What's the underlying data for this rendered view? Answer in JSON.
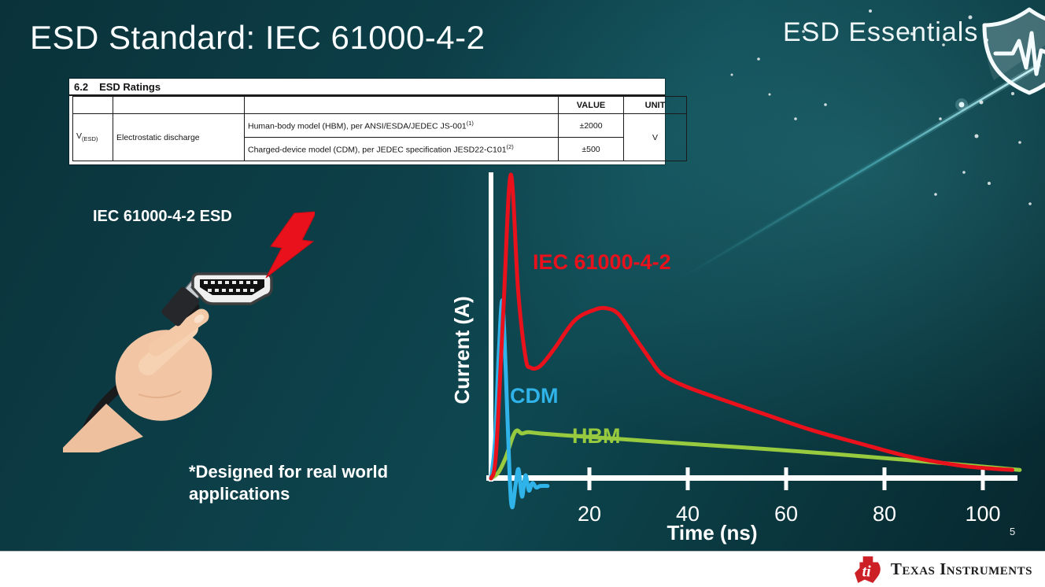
{
  "slide": {
    "title": "ESD Standard: IEC 61000-4-2",
    "program_name": "ESD Essentials",
    "page_number": "5",
    "illustration_label": "IEC 61000-4-2 ESD",
    "footnote": "*Designed for real world applications"
  },
  "ratings_table": {
    "section_number": "6.2",
    "section_title": "ESD Ratings",
    "headers": {
      "value": "VALUE",
      "unit": "UNIT"
    },
    "symbol": "V",
    "symbol_subscript": "(ESD)",
    "parameter": "Electrostatic discharge",
    "rows": [
      {
        "description": "Human-body model (HBM), per ANSI/ESDA/JEDEC JS-001",
        "superscript": "(1)",
        "value": "±2000"
      },
      {
        "description": "Charged-device model (CDM), per JEDEC specification JESD22-C101",
        "superscript": "(2)",
        "value": "±500"
      }
    ],
    "unit": "V"
  },
  "footer": {
    "brand": "Texas Instruments",
    "logo_monogram": "ti"
  },
  "chart_data": {
    "type": "line",
    "title": "",
    "xlabel": "Time (ns)",
    "ylabel": "Current (A)",
    "x_ticks": [
      20,
      40,
      60,
      80,
      100
    ],
    "x_range": [
      0,
      110
    ],
    "grid": false,
    "legend": "inline-colored-labels",
    "colors": {
      "iec": "#e8111c",
      "cdm": "#2fb3e8",
      "hbm": "#97ca3e",
      "axis": "#ffffff"
    },
    "series": [
      {
        "name": "IEC 61000-4-2",
        "color": "#e8111c",
        "points": [
          [
            0,
            0
          ],
          [
            1,
            0.08
          ],
          [
            2.5,
            0.55
          ],
          [
            4,
            1.0
          ],
          [
            5.5,
            0.62
          ],
          [
            7,
            0.4
          ],
          [
            8,
            0.365
          ],
          [
            10,
            0.37
          ],
          [
            13,
            0.43
          ],
          [
            17,
            0.52
          ],
          [
            21,
            0.555
          ],
          [
            23.5,
            0.56
          ],
          [
            26,
            0.54
          ],
          [
            29,
            0.47
          ],
          [
            32,
            0.4
          ],
          [
            34,
            0.355
          ],
          [
            36,
            0.33
          ],
          [
            40,
            0.3
          ],
          [
            46,
            0.265
          ],
          [
            55,
            0.215
          ],
          [
            65,
            0.16
          ],
          [
            75,
            0.115
          ],
          [
            85,
            0.072
          ],
          [
            95,
            0.043
          ],
          [
            102,
            0.032
          ],
          [
            106,
            0.028
          ]
        ]
      },
      {
        "name": "CDM",
        "color": "#2fb3e8",
        "points": [
          [
            0,
            0
          ],
          [
            0.8,
            0.12
          ],
          [
            1.6,
            0.42
          ],
          [
            2.3,
            0.585
          ],
          [
            3.0,
            0.35
          ],
          [
            3.8,
            0.0
          ],
          [
            4.3,
            -0.095
          ],
          [
            5.0,
            -0.02
          ],
          [
            5.6,
            0.03
          ],
          [
            6.3,
            -0.06
          ],
          [
            7.0,
            0.01
          ],
          [
            7.7,
            -0.04
          ],
          [
            8.4,
            -0.015
          ],
          [
            9.2,
            -0.03
          ],
          [
            10,
            -0.025
          ],
          [
            11.5,
            -0.025
          ]
        ]
      },
      {
        "name": "HBM",
        "color": "#97ca3e",
        "points": [
          [
            0,
            0
          ],
          [
            1.5,
            0.02
          ],
          [
            3,
            0.07
          ],
          [
            4.5,
            0.14
          ],
          [
            5.3,
            0.158
          ],
          [
            6.2,
            0.148
          ],
          [
            7.5,
            0.152
          ],
          [
            10,
            0.148
          ],
          [
            15,
            0.142
          ],
          [
            25,
            0.131
          ],
          [
            40,
            0.114
          ],
          [
            55,
            0.098
          ],
          [
            70,
            0.08
          ],
          [
            85,
            0.06
          ],
          [
            95,
            0.046
          ],
          [
            102,
            0.036
          ],
          [
            107.5,
            0.028
          ]
        ]
      }
    ]
  }
}
